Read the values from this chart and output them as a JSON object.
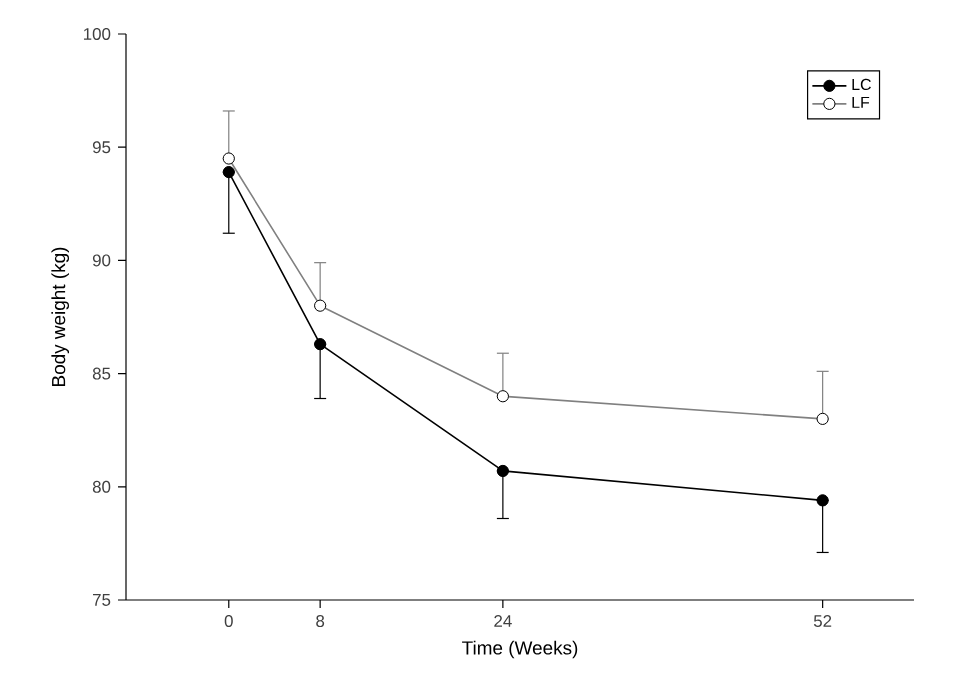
{
  "chart_data": {
    "type": "line",
    "xlabel": "Time (Weeks)",
    "ylabel": "Body weight (kg)",
    "x": [
      0,
      8,
      24,
      52
    ],
    "series": [
      {
        "name": "LC",
        "color": "#000000",
        "values": [
          93.9,
          86.3,
          80.7,
          79.4
        ],
        "errors": [
          [
            91.2,
            93.9
          ],
          [
            83.9,
            86.3
          ],
          [
            78.6,
            80.7
          ],
          [
            77.1,
            79.4
          ]
        ]
      },
      {
        "name": "LF",
        "color": "#808080",
        "values": [
          94.5,
          88.0,
          84.0,
          83.0
        ],
        "errors": [
          [
            94.5,
            96.6
          ],
          [
            88.0,
            89.9
          ],
          [
            84.0,
            85.9
          ],
          [
            83.0,
            85.1
          ]
        ]
      }
    ],
    "xlim": [
      -9,
      60
    ],
    "ylim": [
      75,
      100
    ],
    "xticks": [
      0,
      8,
      24,
      52
    ],
    "yticks": [
      75,
      80,
      85,
      90,
      95,
      100
    ],
    "marker": "circle",
    "line_style": "solid",
    "legend": "top right",
    "grid": false
  }
}
